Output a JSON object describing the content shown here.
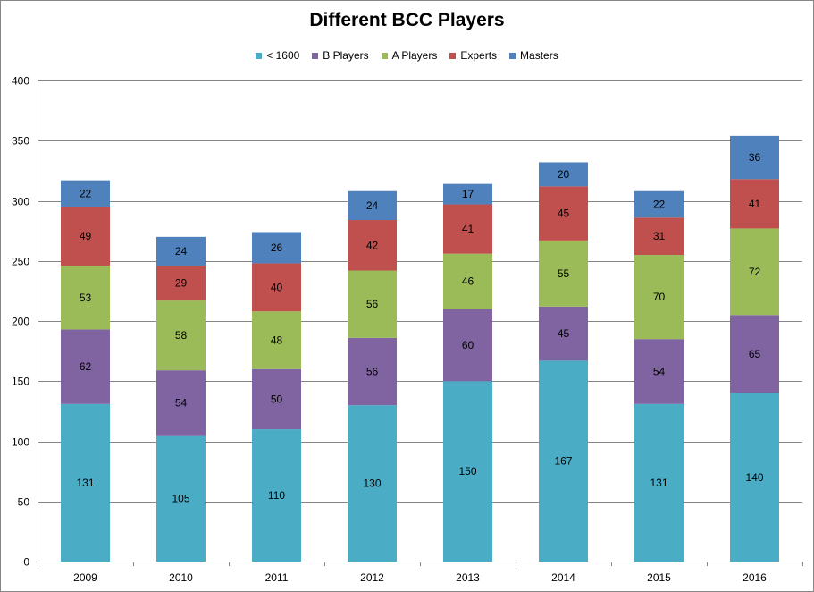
{
  "chart_data": {
    "type": "bar",
    "stacked": true,
    "title": "Different BCC Players",
    "xlabel": "",
    "ylabel": "",
    "categories": [
      "2009",
      "2010",
      "2011",
      "2012",
      "2013",
      "2014",
      "2015",
      "2016"
    ],
    "ylim": [
      0,
      400
    ],
    "yticks": [
      0,
      50,
      100,
      150,
      200,
      250,
      300,
      350,
      400
    ],
    "grid": true,
    "legend_position": "top-center",
    "series": [
      {
        "name": "< 1600",
        "color": "#4BACC6",
        "values": [
          131,
          105,
          110,
          130,
          150,
          167,
          131,
          140
        ]
      },
      {
        "name": "B Players",
        "color": "#8064A2",
        "values": [
          62,
          54,
          50,
          56,
          60,
          45,
          54,
          65
        ]
      },
      {
        "name": "A Players",
        "color": "#9BBB59",
        "values": [
          53,
          58,
          48,
          56,
          46,
          55,
          70,
          72
        ]
      },
      {
        "name": "Experts",
        "color": "#C0504D",
        "values": [
          49,
          29,
          40,
          42,
          41,
          45,
          31,
          41
        ]
      },
      {
        "name": "Masters",
        "color": "#4F81BD",
        "values": [
          22,
          24,
          26,
          24,
          17,
          20,
          22,
          36
        ]
      }
    ]
  }
}
